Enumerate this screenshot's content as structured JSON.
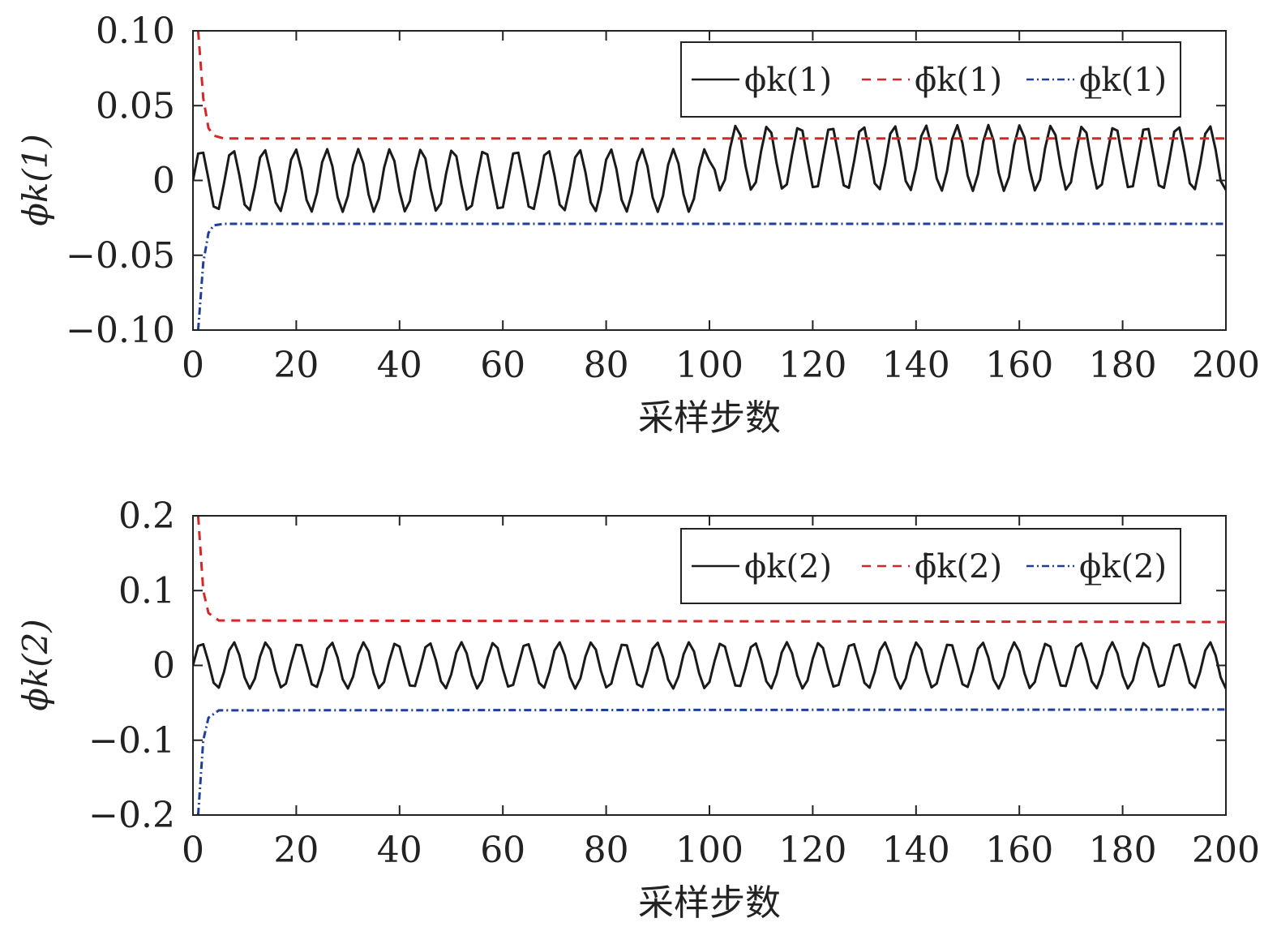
{
  "chart_data": [
    {
      "type": "line",
      "xlabel": "采样步数",
      "ylabel": "ϕk(1)",
      "xlim": [
        0,
        200
      ],
      "ylim": [
        -0.1,
        0.1
      ],
      "xticks": [
        0,
        20,
        40,
        60,
        80,
        100,
        120,
        140,
        160,
        180,
        200
      ],
      "yticks": [
        0.1,
        0.05,
        0,
        -0.05,
        -0.1
      ],
      "ytick_labels": [
        "0.10",
        "0.05",
        "0",
        "−0.05",
        "−0.10"
      ],
      "legend_position": "top-right",
      "grid": false,
      "series": [
        {
          "name": "ϕk(1)",
          "style": "solid",
          "color": "#1a1a1a",
          "signal": {
            "period": 6.1,
            "segments": [
              {
                "x_from": 0,
                "x_to": 100,
                "center": 0.0,
                "amplitude": 0.021
              },
              {
                "x_from": 100,
                "x_to": 200,
                "center": 0.015,
                "amplitude": 0.022
              }
            ]
          }
        },
        {
          "name": "ϕ̄k(1)",
          "style": "dashed",
          "color": "#d62728",
          "points": [
            [
              1,
              0.1
            ],
            [
              2,
              0.055
            ],
            [
              3,
              0.035
            ],
            [
              4,
              0.03
            ],
            [
              6,
              0.028
            ],
            [
              200,
              0.028
            ]
          ]
        },
        {
          "name": "ϕ̲k(1)",
          "style": "dashdot",
          "color": "#1f3f9a",
          "points": [
            [
              1,
              -0.1
            ],
            [
              2,
              -0.055
            ],
            [
              3,
              -0.035
            ],
            [
              4,
              -0.03
            ],
            [
              6,
              -0.029
            ],
            [
              200,
              -0.029
            ]
          ]
        }
      ]
    },
    {
      "type": "line",
      "xlabel": "采样步数",
      "ylabel": "ϕk(2)",
      "xlim": [
        0,
        200
      ],
      "ylim": [
        -0.2,
        0.2
      ],
      "xticks": [
        0,
        20,
        40,
        60,
        80,
        100,
        120,
        140,
        160,
        180,
        200
      ],
      "yticks": [
        0.2,
        0.1,
        0,
        -0.1,
        -0.2
      ],
      "ytick_labels": [
        "0.2",
        "0.1",
        "0",
        "−0.1",
        "−0.2"
      ],
      "legend_position": "top-right",
      "grid": false,
      "series": [
        {
          "name": "ϕk(2)",
          "style": "solid",
          "color": "#1a1a1a",
          "signal": {
            "period": 6.3,
            "segments": [
              {
                "x_from": 0,
                "x_to": 200,
                "center": 0.0,
                "amplitude": 0.031
              }
            ]
          }
        },
        {
          "name": "ϕ̄k(2)",
          "style": "dashed",
          "color": "#d62728",
          "points": [
            [
              1,
              0.2
            ],
            [
              2,
              0.1
            ],
            [
              3,
              0.07
            ],
            [
              5,
              0.06
            ],
            [
              200,
              0.058
            ]
          ]
        },
        {
          "name": "ϕ̲k(2)",
          "style": "dashdot",
          "color": "#1f3f9a",
          "points": [
            [
              1,
              -0.2
            ],
            [
              2,
              -0.1
            ],
            [
              3,
              -0.07
            ],
            [
              5,
              -0.06
            ],
            [
              200,
              -0.059
            ]
          ]
        }
      ]
    }
  ]
}
